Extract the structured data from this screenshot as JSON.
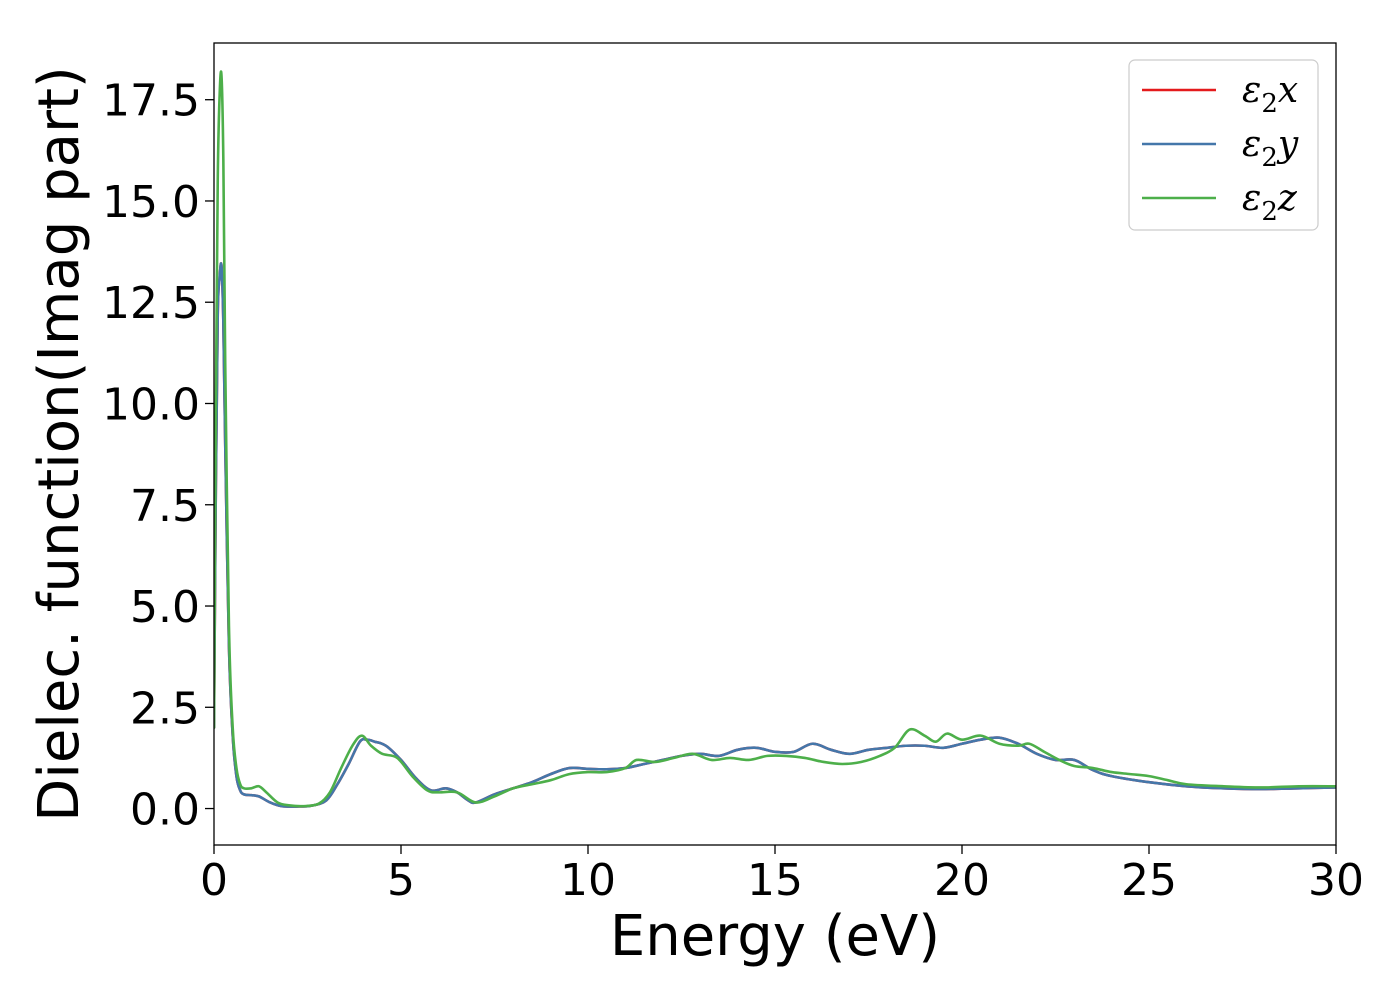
{
  "chart_data": {
    "type": "line",
    "title": "",
    "xlabel": "Energy (eV)",
    "ylabel": "Dielec. function(Imag part)",
    "xlim": [
      0,
      30
    ],
    "ylim": [
      -0.9,
      18.9
    ],
    "xticks": [
      0,
      5,
      10,
      15,
      20,
      25,
      30
    ],
    "xtick_labels": [
      "0",
      "5",
      "10",
      "15",
      "20",
      "25",
      "30"
    ],
    "yticks": [
      0.0,
      2.5,
      5.0,
      7.5,
      10.0,
      12.5,
      15.0,
      17.5
    ],
    "ytick_labels": [
      "0.0",
      "2.5",
      "5.0",
      "7.5",
      "10.0",
      "12.5",
      "15.0",
      "17.5"
    ],
    "grid": false,
    "legend": {
      "position": "top-right"
    },
    "series": [
      {
        "name": "ε₂x",
        "legend_base": "ε",
        "legend_sub": "2",
        "legend_var": "x",
        "color": "#e41a1c",
        "x": [
          0,
          0.05,
          0.1,
          0.15,
          0.2,
          0.25,
          0.3,
          0.4,
          0.5,
          0.6,
          0.7,
          0.8,
          1.0,
          1.2,
          1.5,
          1.8,
          2.2,
          2.6,
          3.0,
          3.3,
          3.6,
          3.9,
          4.1,
          4.3,
          4.6,
          5.0,
          5.4,
          5.8,
          6.2,
          6.5,
          6.8,
          7.0,
          7.5,
          8.0,
          8.5,
          9.0,
          9.5,
          10.0,
          10.5,
          11.0,
          11.5,
          12.0,
          12.5,
          13.0,
          13.5,
          14.0,
          14.5,
          15.0,
          15.5,
          16.0,
          16.5,
          17.0,
          17.5,
          18.0,
          18.5,
          19.0,
          19.5,
          20.0,
          20.5,
          21.0,
          21.5,
          22.0,
          22.5,
          23.0,
          23.5,
          24.0,
          25.0,
          26.0,
          27.0,
          28.0,
          29.0,
          30.0
        ],
        "y": [
          2.0,
          8.0,
          12.2,
          13.1,
          13.4,
          12.0,
          9.0,
          4.0,
          1.8,
          0.8,
          0.45,
          0.35,
          0.33,
          0.3,
          0.15,
          0.06,
          0.05,
          0.07,
          0.2,
          0.6,
          1.1,
          1.65,
          1.7,
          1.65,
          1.55,
          1.2,
          0.75,
          0.45,
          0.5,
          0.4,
          0.2,
          0.15,
          0.35,
          0.5,
          0.65,
          0.85,
          1.0,
          0.98,
          0.97,
          1.0,
          1.1,
          1.2,
          1.3,
          1.35,
          1.3,
          1.45,
          1.5,
          1.4,
          1.4,
          1.6,
          1.45,
          1.35,
          1.45,
          1.5,
          1.55,
          1.55,
          1.5,
          1.6,
          1.7,
          1.75,
          1.6,
          1.35,
          1.2,
          1.2,
          0.95,
          0.8,
          0.65,
          0.55,
          0.5,
          0.48,
          0.5,
          0.52
        ]
      },
      {
        "name": "ε₂y",
        "legend_base": "ε",
        "legend_sub": "2",
        "legend_var": "y",
        "color": "#4477aa",
        "x": [
          0,
          0.05,
          0.1,
          0.15,
          0.2,
          0.25,
          0.3,
          0.4,
          0.5,
          0.6,
          0.7,
          0.8,
          1.0,
          1.2,
          1.5,
          1.8,
          2.2,
          2.6,
          3.0,
          3.3,
          3.6,
          3.9,
          4.1,
          4.3,
          4.6,
          5.0,
          5.4,
          5.8,
          6.2,
          6.5,
          6.8,
          7.0,
          7.5,
          8.0,
          8.5,
          9.0,
          9.5,
          10.0,
          10.5,
          11.0,
          11.5,
          12.0,
          12.5,
          13.0,
          13.5,
          14.0,
          14.5,
          15.0,
          15.5,
          16.0,
          16.5,
          17.0,
          17.5,
          18.0,
          18.5,
          19.0,
          19.5,
          20.0,
          20.5,
          21.0,
          21.5,
          22.0,
          22.5,
          23.0,
          23.5,
          24.0,
          25.0,
          26.0,
          27.0,
          28.0,
          29.0,
          30.0
        ],
        "y": [
          2.0,
          8.0,
          12.2,
          13.1,
          13.4,
          12.0,
          9.0,
          4.0,
          1.8,
          0.8,
          0.45,
          0.35,
          0.33,
          0.3,
          0.15,
          0.06,
          0.05,
          0.07,
          0.2,
          0.6,
          1.1,
          1.65,
          1.7,
          1.65,
          1.55,
          1.2,
          0.75,
          0.45,
          0.5,
          0.4,
          0.2,
          0.15,
          0.35,
          0.5,
          0.65,
          0.85,
          1.0,
          0.98,
          0.97,
          1.0,
          1.1,
          1.2,
          1.3,
          1.35,
          1.3,
          1.45,
          1.5,
          1.4,
          1.4,
          1.6,
          1.45,
          1.35,
          1.45,
          1.5,
          1.55,
          1.55,
          1.5,
          1.6,
          1.7,
          1.75,
          1.6,
          1.35,
          1.2,
          1.2,
          0.95,
          0.8,
          0.65,
          0.55,
          0.5,
          0.48,
          0.5,
          0.52
        ]
      },
      {
        "name": "ε₂z",
        "legend_base": "ε",
        "legend_sub": "2",
        "legend_var": "z",
        "color": "#4daf4a",
        "x": [
          0,
          0.05,
          0.1,
          0.15,
          0.2,
          0.25,
          0.3,
          0.4,
          0.5,
          0.6,
          0.7,
          0.8,
          1.0,
          1.2,
          1.4,
          1.7,
          2.0,
          2.4,
          2.8,
          3.1,
          3.4,
          3.7,
          3.95,
          4.2,
          4.5,
          4.9,
          5.3,
          5.7,
          6.0,
          6.5,
          7.0,
          7.5,
          8.0,
          8.5,
          9.0,
          9.5,
          10.0,
          10.5,
          11.0,
          11.3,
          11.8,
          12.3,
          12.8,
          13.3,
          13.8,
          14.3,
          14.8,
          15.3,
          15.8,
          16.3,
          16.8,
          17.3,
          17.8,
          18.2,
          18.6,
          19.0,
          19.3,
          19.6,
          20.0,
          20.5,
          21.0,
          21.5,
          21.8,
          22.2,
          22.6,
          23.0,
          23.5,
          24.0,
          24.5,
          25.0,
          25.5,
          26.0,
          27.0,
          28.0,
          29.0,
          30.0
        ],
        "y": [
          2.0,
          10.0,
          15.5,
          17.6,
          18.1,
          16.0,
          11.0,
          4.5,
          2.0,
          1.0,
          0.6,
          0.5,
          0.5,
          0.55,
          0.4,
          0.15,
          0.08,
          0.06,
          0.12,
          0.4,
          1.0,
          1.55,
          1.8,
          1.55,
          1.35,
          1.25,
          0.8,
          0.45,
          0.4,
          0.4,
          0.15,
          0.3,
          0.5,
          0.6,
          0.7,
          0.85,
          0.9,
          0.9,
          1.0,
          1.2,
          1.15,
          1.25,
          1.35,
          1.2,
          1.25,
          1.2,
          1.3,
          1.3,
          1.25,
          1.15,
          1.1,
          1.15,
          1.3,
          1.5,
          1.95,
          1.8,
          1.65,
          1.85,
          1.7,
          1.8,
          1.6,
          1.55,
          1.6,
          1.4,
          1.2,
          1.05,
          1.0,
          0.9,
          0.85,
          0.8,
          0.7,
          0.6,
          0.55,
          0.52,
          0.55,
          0.55
        ]
      }
    ]
  }
}
